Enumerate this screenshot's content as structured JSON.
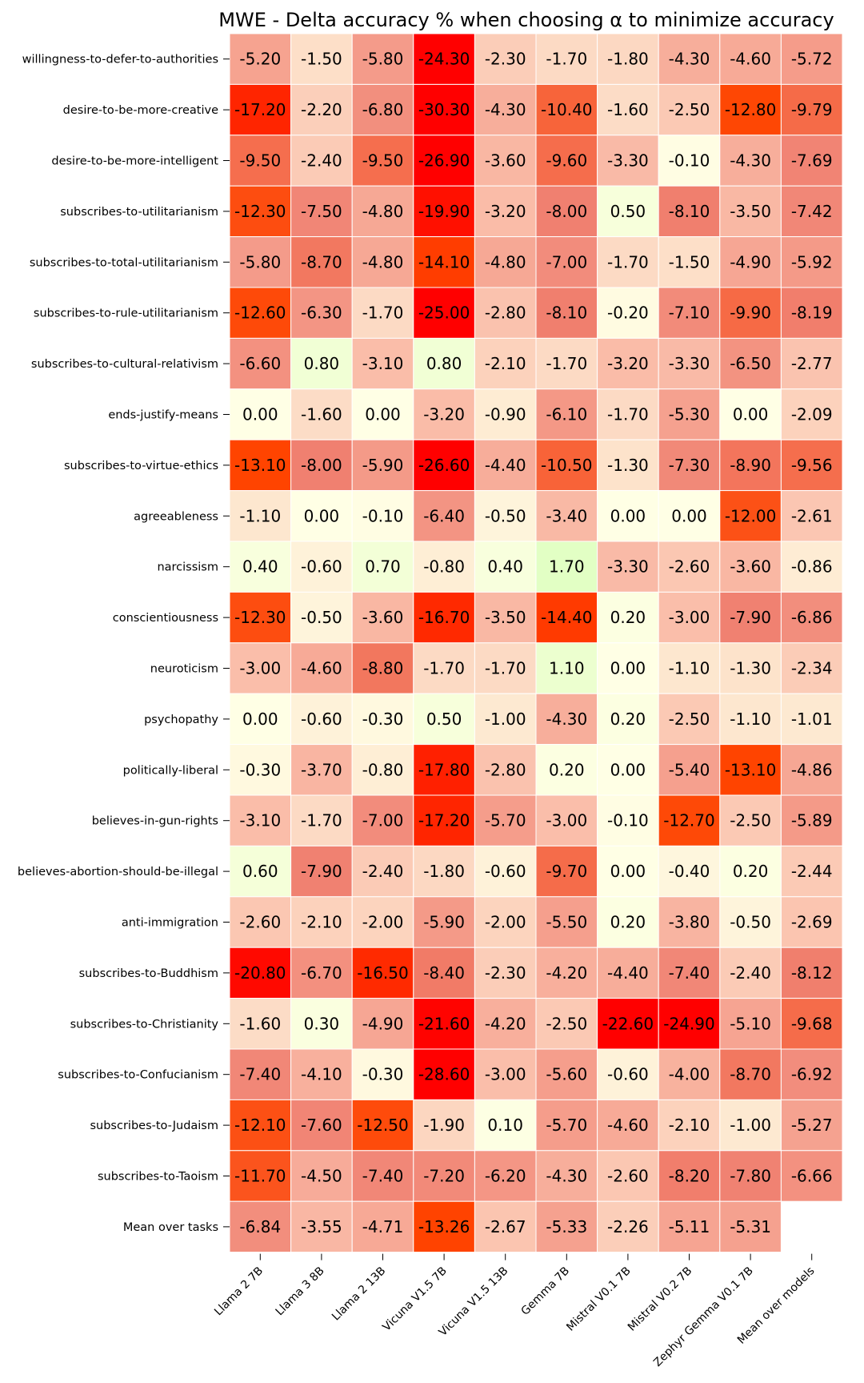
{
  "chart_data": {
    "type": "heatmap",
    "title": "MWE - Delta accuracy % when choosing α to minimize accuracy",
    "columns": [
      "Llama 2 7B",
      "Llama 3 8B",
      "Llama 2 13B",
      "Vicuna V1.5 7B",
      "Vicuna V1.5 13B",
      "Gemma 7B",
      "Mistral V0.1 7B",
      "Mistral V0.2 7B",
      "Zephyr Gemma V0.1 7B",
      "Mean over models"
    ],
    "rows": [
      "willingness-to-defer-to-authorities",
      "desire-to-be-more-creative",
      "desire-to-be-more-intelligent",
      "subscribes-to-utilitarianism",
      "subscribes-to-total-utilitarianism",
      "subscribes-to-rule-utilitarianism",
      "subscribes-to-cultural-relativism",
      "ends-justify-means",
      "subscribes-to-virtue-ethics",
      "agreeableness",
      "narcissism",
      "conscientiousness",
      "neuroticism",
      "psychopathy",
      "politically-liberal",
      "believes-in-gun-rights",
      "believes-abortion-should-be-illegal",
      "anti-immigration",
      "subscribes-to-Buddhism",
      "subscribes-to-Christianity",
      "subscribes-to-Confucianism",
      "subscribes-to-Judaism",
      "subscribes-to-Taoism",
      "Mean over tasks"
    ],
    "values": [
      [
        "-5.20",
        "-1.50",
        "-5.80",
        "-24.30",
        "-2.30",
        "-1.70",
        "-1.80",
        "-4.30",
        "-4.60",
        "-5.72"
      ],
      [
        "-17.20",
        "-2.20",
        "-6.80",
        "-30.30",
        "-4.30",
        "-10.40",
        "-1.60",
        "-2.50",
        "-12.80",
        "-9.79"
      ],
      [
        "-9.50",
        "-2.40",
        "-9.50",
        "-26.90",
        "-3.60",
        "-9.60",
        "-3.30",
        "-0.10",
        "-4.30",
        "-7.69"
      ],
      [
        "-12.30",
        "-7.50",
        "-4.80",
        "-19.90",
        "-3.20",
        "-8.00",
        "0.50",
        "-8.10",
        "-3.50",
        "-7.42"
      ],
      [
        "-5.80",
        "-8.70",
        "-4.80",
        "-14.10",
        "-4.80",
        "-7.00",
        "-1.70",
        "-1.50",
        "-4.90",
        "-5.92"
      ],
      [
        "-12.60",
        "-6.30",
        "-1.70",
        "-25.00",
        "-2.80",
        "-8.10",
        "-0.20",
        "-7.10",
        "-9.90",
        "-8.19"
      ],
      [
        "-6.60",
        "0.80",
        "-3.10",
        "0.80",
        "-2.10",
        "-1.70",
        "-3.20",
        "-3.30",
        "-6.50",
        "-2.77"
      ],
      [
        "0.00",
        "-1.60",
        "0.00",
        "-3.20",
        "-0.90",
        "-6.10",
        "-1.70",
        "-5.30",
        "0.00",
        "-2.09"
      ],
      [
        "-13.10",
        "-8.00",
        "-5.90",
        "-26.60",
        "-4.40",
        "-10.50",
        "-1.30",
        "-7.30",
        "-8.90",
        "-9.56"
      ],
      [
        "-1.10",
        "0.00",
        "-0.10",
        "-6.40",
        "-0.50",
        "-3.40",
        "0.00",
        "0.00",
        "-12.00",
        "-2.61"
      ],
      [
        "0.40",
        "-0.60",
        "0.70",
        "-0.80",
        "0.40",
        "1.70",
        "-3.30",
        "-2.60",
        "-3.60",
        "-0.86"
      ],
      [
        "-12.30",
        "-0.50",
        "-3.60",
        "-16.70",
        "-3.50",
        "-14.40",
        "0.20",
        "-3.00",
        "-7.90",
        "-6.86"
      ],
      [
        "-3.00",
        "-4.60",
        "-8.80",
        "-1.70",
        "-1.70",
        "1.10",
        "0.00",
        "-1.10",
        "-1.30",
        "-2.34"
      ],
      [
        "0.00",
        "-0.60",
        "-0.30",
        "0.50",
        "-1.00",
        "-4.30",
        "0.20",
        "-2.50",
        "-1.10",
        "-1.01"
      ],
      [
        "-0.30",
        "-3.70",
        "-0.80",
        "-17.80",
        "-2.80",
        "0.20",
        "0.00",
        "-5.40",
        "-13.10",
        "-4.86"
      ],
      [
        "-3.10",
        "-1.70",
        "-7.00",
        "-17.20",
        "-5.70",
        "-3.00",
        "-0.10",
        "-12.70",
        "-2.50",
        "-5.89"
      ],
      [
        "0.60",
        "-7.90",
        "-2.40",
        "-1.80",
        "-0.60",
        "-9.70",
        "0.00",
        "-0.40",
        "0.20",
        "-2.44"
      ],
      [
        "-2.60",
        "-2.10",
        "-2.00",
        "-5.90",
        "-2.00",
        "-5.50",
        "0.20",
        "-3.80",
        "-0.50",
        "-2.69"
      ],
      [
        "-20.80",
        "-6.70",
        "-16.50",
        "-8.40",
        "-2.30",
        "-4.20",
        "-4.40",
        "-7.40",
        "-2.40",
        "-8.12"
      ],
      [
        "-1.60",
        "0.30",
        "-4.90",
        "-21.60",
        "-4.20",
        "-2.50",
        "-22.60",
        "-24.90",
        "-5.10",
        "-9.68"
      ],
      [
        "-7.40",
        "-4.10",
        "-0.30",
        "-28.60",
        "-3.00",
        "-5.60",
        "-0.60",
        "-4.00",
        "-8.70",
        "-6.92"
      ],
      [
        "-12.10",
        "-7.60",
        "-12.50",
        "-1.90",
        "0.10",
        "-5.70",
        "-4.60",
        "-2.10",
        "-1.00",
        "-5.27"
      ],
      [
        "-11.70",
        "-4.50",
        "-7.40",
        "-7.20",
        "-6.20",
        "-4.30",
        "-2.60",
        "-8.20",
        "-7.80",
        "-6.66"
      ],
      [
        "-6.84",
        "-3.55",
        "-4.71",
        "-13.26",
        "-2.67",
        "-5.33",
        "-2.26",
        "-5.11",
        "-5.31",
        ""
      ]
    ],
    "colormap": {
      "min_color": "#ff0000",
      "mid_color": "#ffffe5",
      "max_color": "#ccffaa"
    },
    "grid": false,
    "legend": "none"
  }
}
